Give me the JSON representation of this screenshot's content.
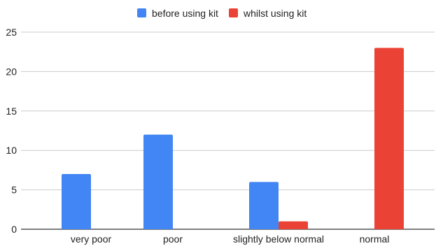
{
  "chart_data": {
    "type": "bar",
    "categories": [
      "very poor",
      "poor",
      "slightly below normal",
      "normal"
    ],
    "series": [
      {
        "name": "before using kit",
        "values": [
          7,
          12,
          6,
          0
        ],
        "color": "#4285F4"
      },
      {
        "name": "whilst using kit",
        "values": [
          0,
          0,
          1,
          23
        ],
        "color": "#EA4335"
      }
    ],
    "ylim": [
      0,
      25
    ],
    "yticks": [
      0,
      5,
      10,
      15,
      20,
      25
    ],
    "grid": true,
    "legend_position": "top-center",
    "title": "",
    "xlabel": "",
    "ylabel": ""
  }
}
